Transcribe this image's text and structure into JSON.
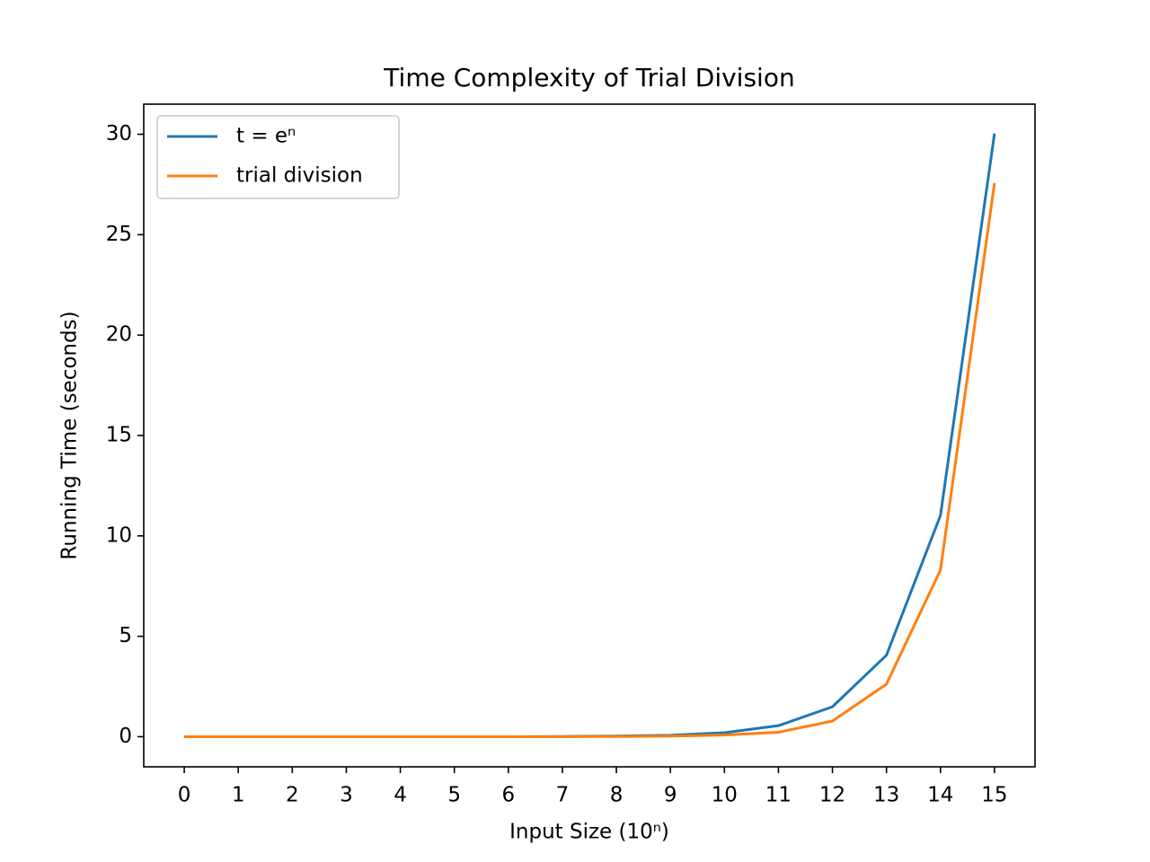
{
  "chart_data": {
    "type": "line",
    "title": "Time Complexity of Trial Division",
    "x_label": "Input Size (10ⁿ)",
    "y_label": "Running Time (seconds)",
    "x": [
      0,
      1,
      2,
      3,
      4,
      5,
      6,
      7,
      8,
      9,
      10,
      11,
      12,
      13,
      14,
      15
    ],
    "series": [
      {
        "name": "t = eⁿ",
        "color": "#1f77b4",
        "values": [
          0,
          0,
          0,
          0,
          0,
          0,
          0,
          0.01,
          0.03,
          0.07,
          0.2,
          0.55,
          1.49,
          4.06,
          11.02,
          30.04
        ]
      },
      {
        "name": "trial division",
        "color": "#ff7f0e",
        "values": [
          0,
          0,
          0,
          0,
          0,
          0,
          0,
          0,
          0.01,
          0.03,
          0.08,
          0.22,
          0.78,
          2.62,
          8.3,
          27.57
        ]
      }
    ],
    "xlim": [
      -0.75,
      15.75
    ],
    "xticks": [
      0,
      1,
      2,
      3,
      4,
      5,
      6,
      7,
      8,
      9,
      10,
      11,
      12,
      13,
      14,
      15
    ],
    "ylim": [
      -1.5,
      31.5
    ],
    "yticks": [
      0,
      5,
      10,
      15,
      20,
      25,
      30
    ],
    "grid": false,
    "legend_position": "upper-left"
  }
}
